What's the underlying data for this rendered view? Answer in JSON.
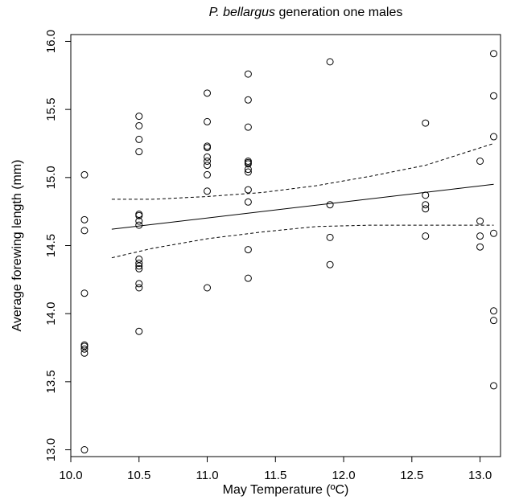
{
  "chart_data": {
    "type": "scatter",
    "title_italic": "P. bellargus",
    "title_rest": " generation one males",
    "xlabel": "May Temperature (ºC)",
    "ylabel": "Average forewing length (mm)",
    "xlim": [
      10.0,
      13.15
    ],
    "ylim": [
      12.95,
      16.05
    ],
    "x_ticks": [
      10.0,
      10.5,
      11.0,
      11.5,
      12.0,
      12.5,
      13.0
    ],
    "x_tick_labels": [
      "10.0",
      "10.5",
      "11.0",
      "11.5",
      "12.0",
      "12.5",
      "13.0"
    ],
    "y_ticks": [
      13.0,
      13.5,
      14.0,
      14.5,
      15.0,
      15.5,
      16.0
    ],
    "y_tick_labels": [
      "13.0",
      "13.5",
      "14.0",
      "14.5",
      "15.0",
      "15.5",
      "16.0"
    ],
    "grid": false,
    "points": [
      [
        10.1,
        15.02
      ],
      [
        10.1,
        14.69
      ],
      [
        10.1,
        14.61
      ],
      [
        10.1,
        14.15
      ],
      [
        10.1,
        13.77
      ],
      [
        10.1,
        13.76
      ],
      [
        10.1,
        13.74
      ],
      [
        10.1,
        13.71
      ],
      [
        10.1,
        13.0
      ],
      [
        10.5,
        15.45
      ],
      [
        10.5,
        15.38
      ],
      [
        10.5,
        15.28
      ],
      [
        10.5,
        15.19
      ],
      [
        10.5,
        14.73
      ],
      [
        10.5,
        14.72
      ],
      [
        10.5,
        14.68
      ],
      [
        10.5,
        14.65
      ],
      [
        10.5,
        14.4
      ],
      [
        10.5,
        14.37
      ],
      [
        10.5,
        14.35
      ],
      [
        10.5,
        14.33
      ],
      [
        10.5,
        14.22
      ],
      [
        10.5,
        14.19
      ],
      [
        10.5,
        13.87
      ],
      [
        11.0,
        15.62
      ],
      [
        11.0,
        15.41
      ],
      [
        11.0,
        15.23
      ],
      [
        11.0,
        15.22
      ],
      [
        11.0,
        15.15
      ],
      [
        11.0,
        15.12
      ],
      [
        11.0,
        15.09
      ],
      [
        11.0,
        15.02
      ],
      [
        11.0,
        14.9
      ],
      [
        11.0,
        14.19
      ],
      [
        11.3,
        15.76
      ],
      [
        11.3,
        15.57
      ],
      [
        11.3,
        15.37
      ],
      [
        11.3,
        15.12
      ],
      [
        11.3,
        15.11
      ],
      [
        11.3,
        15.1
      ],
      [
        11.3,
        15.06
      ],
      [
        11.3,
        15.04
      ],
      [
        11.3,
        14.91
      ],
      [
        11.3,
        14.82
      ],
      [
        11.3,
        14.47
      ],
      [
        11.3,
        14.26
      ],
      [
        11.9,
        15.85
      ],
      [
        11.9,
        14.8
      ],
      [
        11.9,
        14.56
      ],
      [
        11.9,
        14.36
      ],
      [
        12.6,
        15.4
      ],
      [
        12.6,
        14.87
      ],
      [
        12.6,
        14.8
      ],
      [
        12.6,
        14.77
      ],
      [
        12.6,
        14.57
      ],
      [
        13.0,
        15.12
      ],
      [
        13.0,
        14.68
      ],
      [
        13.0,
        14.57
      ],
      [
        13.0,
        14.49
      ],
      [
        13.1,
        15.91
      ],
      [
        13.1,
        15.6
      ],
      [
        13.1,
        15.3
      ],
      [
        13.1,
        14.59
      ],
      [
        13.1,
        14.02
      ],
      [
        13.1,
        13.95
      ],
      [
        13.1,
        13.47
      ]
    ],
    "fit_line": [
      [
        10.3,
        14.62
      ],
      [
        13.1,
        14.95
      ]
    ],
    "ci_upper": [
      [
        10.3,
        14.84
      ],
      [
        10.6,
        14.84
      ],
      [
        11.0,
        14.86
      ],
      [
        11.4,
        14.89
      ],
      [
        11.8,
        14.94
      ],
      [
        12.2,
        15.01
      ],
      [
        12.6,
        15.09
      ],
      [
        13.1,
        15.25
      ]
    ],
    "ci_lower": [
      [
        10.3,
        14.41
      ],
      [
        10.6,
        14.48
      ],
      [
        11.0,
        14.55
      ],
      [
        11.4,
        14.6
      ],
      [
        11.8,
        14.64
      ],
      [
        12.2,
        14.65
      ],
      [
        12.6,
        14.65
      ],
      [
        13.1,
        14.65
      ]
    ]
  }
}
